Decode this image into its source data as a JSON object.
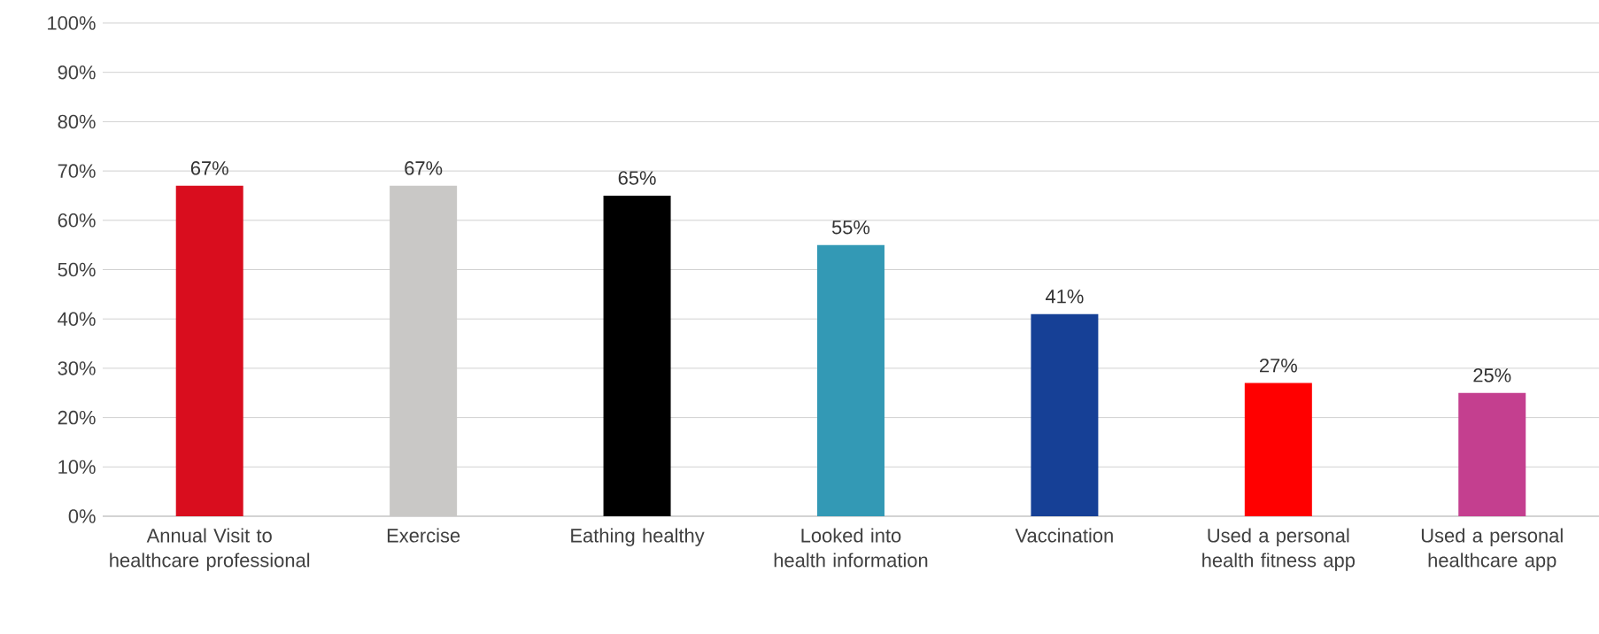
{
  "chart_data": {
    "type": "bar",
    "categories": [
      "Annual Visit to healthcare professional",
      "Exercise",
      "Eathing healthy",
      "Looked into health information",
      "Vaccination",
      "Used a personal health fitness app",
      "Used a personal healthcare app"
    ],
    "values": [
      67,
      67,
      65,
      55,
      41,
      27,
      25
    ],
    "colors": [
      "#d90d1e",
      "#c9c8c6",
      "#000000",
      "#3399b5",
      "#164096",
      "#ff0000",
      "#c43f8f"
    ],
    "value_labels": [
      "67%",
      "67%",
      "65%",
      "55%",
      "41%",
      "27%",
      "25%"
    ],
    "ylim": [
      0,
      100
    ],
    "yticks": [
      {
        "value": 0,
        "label": "0%"
      },
      {
        "value": 10,
        "label": "10%"
      },
      {
        "value": 20,
        "label": "20%"
      },
      {
        "value": 30,
        "label": "30%"
      },
      {
        "value": 40,
        "label": "40%"
      },
      {
        "value": 50,
        "label": "50%"
      },
      {
        "value": 60,
        "label": "60%"
      },
      {
        "value": 70,
        "label": "70%"
      },
      {
        "value": 80,
        "label": "80%"
      },
      {
        "value": 90,
        "label": "90%"
      },
      {
        "value": 100,
        "label": "100%"
      }
    ],
    "grid": "y"
  }
}
